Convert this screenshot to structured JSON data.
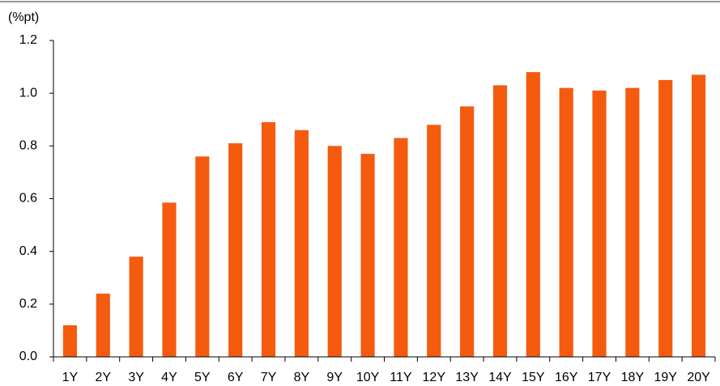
{
  "chart_data": {
    "type": "bar",
    "ylabel": "(%pt)",
    "categories": [
      "1Y",
      "2Y",
      "3Y",
      "4Y",
      "5Y",
      "6Y",
      "7Y",
      "8Y",
      "9Y",
      "10Y",
      "11Y",
      "12Y",
      "13Y",
      "14Y",
      "15Y",
      "16Y",
      "17Y",
      "18Y",
      "19Y",
      "20Y"
    ],
    "values": [
      0.12,
      0.24,
      0.38,
      0.585,
      0.76,
      0.81,
      0.89,
      0.86,
      0.8,
      0.77,
      0.83,
      0.88,
      0.95,
      1.03,
      1.08,
      1.02,
      1.01,
      1.02,
      1.05,
      1.07
    ],
    "color": "#f45b0f",
    "ylim": [
      0,
      1.2
    ],
    "yticks": [
      {
        "value": 0,
        "label": "0.0"
      },
      0.2,
      0.4,
      0.6,
      0.8,
      {
        "value": 1,
        "label": "1.0"
      },
      1.2
    ],
    "grid": false
  }
}
